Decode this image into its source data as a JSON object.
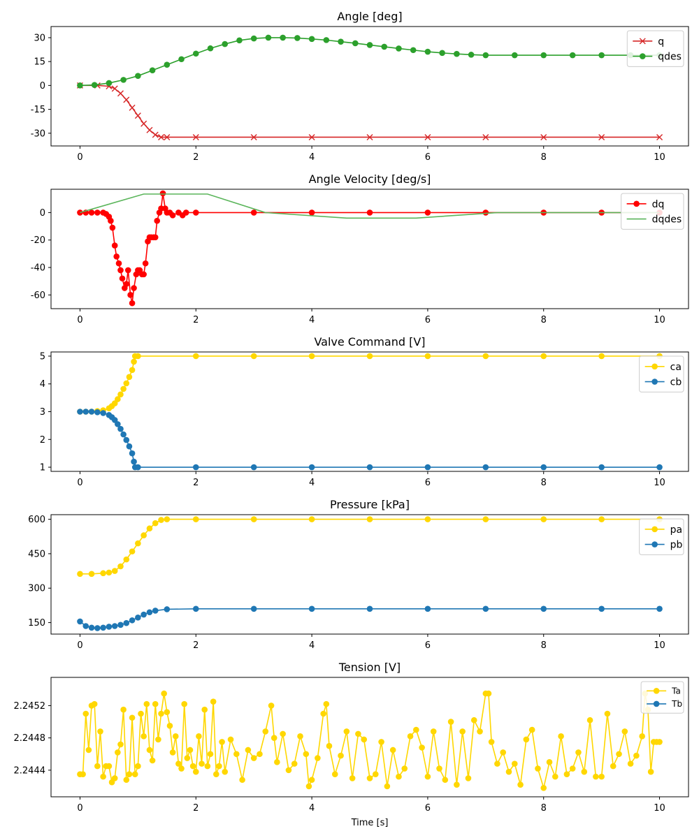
{
  "figure": {
    "xlabel": "Time [s]"
  },
  "chart_data": [
    {
      "type": "line",
      "title": "Angle [deg]",
      "xlabel": "",
      "ylabel": "",
      "xlim": [
        -0.5,
        10.5
      ],
      "ylim": [
        -38,
        37
      ],
      "xticks": [
        0,
        2,
        4,
        6,
        8,
        10
      ],
      "yticks": [
        -30,
        -15,
        0,
        15,
        30
      ],
      "legend": "top-right",
      "series": [
        {
          "name": "q",
          "color": "#d62728",
          "marker": "x",
          "x": [
            0,
            0.3,
            0.5,
            0.6,
            0.7,
            0.8,
            0.9,
            1.0,
            1.1,
            1.2,
            1.3,
            1.4,
            1.5,
            2,
            3,
            4,
            5,
            6,
            7,
            8,
            9,
            10
          ],
          "y": [
            0,
            0,
            -0.5,
            -2,
            -5,
            -9,
            -14,
            -19,
            -24,
            -28,
            -31,
            -32.5,
            -32.5,
            -32.5,
            -32.5,
            -32.5,
            -32.5,
            -32.5,
            -32.5,
            -32.5,
            -32.5,
            -32.5
          ]
        },
        {
          "name": "qdes",
          "color": "#2ca02c",
          "marker": "o",
          "x": [
            0,
            0.25,
            0.5,
            0.75,
            1.0,
            1.25,
            1.5,
            1.75,
            2.0,
            2.25,
            2.5,
            2.75,
            3.0,
            3.25,
            3.5,
            3.75,
            4.0,
            4.25,
            4.5,
            4.75,
            5.0,
            5.25,
            5.5,
            5.75,
            6.0,
            6.25,
            6.5,
            6.75,
            7.0,
            7.5,
            8.0,
            8.5,
            9.0,
            9.5,
            10.0
          ],
          "y": [
            0,
            0.3,
            1.5,
            3.5,
            6,
            9.5,
            13,
            16.5,
            20,
            23.3,
            26,
            28.3,
            29.5,
            30,
            30,
            29.8,
            29.2,
            28.5,
            27.5,
            26.5,
            25.4,
            24.3,
            23.2,
            22.2,
            21.2,
            20.4,
            19.8,
            19.3,
            19,
            19,
            19,
            19,
            19,
            19,
            19
          ]
        }
      ]
    },
    {
      "type": "line",
      "title": "Angle Velocity [deg/s]",
      "xlabel": "",
      "ylabel": "",
      "xlim": [
        -0.5,
        10.5
      ],
      "ylim": [
        -70,
        17
      ],
      "xticks": [
        0,
        2,
        4,
        6,
        8,
        10
      ],
      "yticks": [
        -60,
        -40,
        -20,
        0
      ],
      "legend": "top-right",
      "series": [
        {
          "name": "dq",
          "color": "#ff0000",
          "marker": "o",
          "x": [
            0,
            0.1,
            0.2,
            0.3,
            0.4,
            0.45,
            0.5,
            0.53,
            0.56,
            0.6,
            0.63,
            0.67,
            0.7,
            0.73,
            0.77,
            0.8,
            0.83,
            0.87,
            0.9,
            0.93,
            0.97,
            1.0,
            1.03,
            1.07,
            1.1,
            1.13,
            1.17,
            1.2,
            1.23,
            1.27,
            1.3,
            1.33,
            1.37,
            1.4,
            1.43,
            1.47,
            1.5,
            1.55,
            1.6,
            1.7,
            1.77,
            1.83,
            2.0,
            3,
            4,
            5,
            6,
            7,
            8,
            9,
            10
          ],
          "y": [
            0,
            0,
            0,
            0,
            0,
            -1,
            -3,
            -6,
            -11,
            -24,
            -32,
            -37,
            -42,
            -48,
            -55,
            -52,
            -42,
            -60,
            -66,
            -55,
            -45,
            -42,
            -42,
            -45,
            -45,
            -37,
            -21,
            -18,
            -18,
            -18,
            -18,
            -6,
            0,
            3,
            14,
            3,
            0,
            0,
            -2,
            0,
            -2,
            0,
            0,
            0,
            0,
            0,
            0,
            0,
            0,
            0,
            0
          ]
        },
        {
          "name": "dqdes",
          "color": "#5ab55a",
          "marker": "none",
          "x": [
            0,
            1.1,
            2.2,
            3.2,
            4.6,
            5.8,
            7.2,
            8.5,
            10
          ],
          "y": [
            0,
            13.5,
            13.5,
            0,
            -4,
            -4,
            0,
            0,
            0
          ]
        }
      ]
    },
    {
      "type": "line",
      "title": "Valve Command [V]",
      "xlabel": "",
      "ylabel": "",
      "xlim": [
        -0.5,
        10.5
      ],
      "ylim": [
        0.85,
        5.15
      ],
      "xticks": [
        0,
        2,
        4,
        6,
        8,
        10
      ],
      "yticks": [
        1,
        2,
        3,
        4,
        5
      ],
      "legend": "top-right",
      "series": [
        {
          "name": "ca",
          "color": "#ffd700",
          "marker": "o",
          "x": [
            0,
            0.1,
            0.2,
            0.3,
            0.4,
            0.5,
            0.55,
            0.6,
            0.65,
            0.7,
            0.75,
            0.8,
            0.85,
            0.9,
            0.93,
            0.95,
            1.0,
            2,
            3,
            4,
            5,
            6,
            7,
            8,
            9,
            10
          ],
          "y": [
            3,
            3,
            3,
            3.02,
            3.05,
            3.12,
            3.2,
            3.3,
            3.45,
            3.62,
            3.82,
            4.02,
            4.25,
            4.5,
            4.8,
            5,
            5,
            5,
            5,
            5,
            5,
            5,
            5,
            5,
            5,
            5
          ]
        },
        {
          "name": "cb",
          "color": "#1f77b4",
          "marker": "o",
          "x": [
            0,
            0.1,
            0.2,
            0.3,
            0.4,
            0.5,
            0.55,
            0.6,
            0.65,
            0.7,
            0.75,
            0.8,
            0.85,
            0.9,
            0.93,
            0.95,
            1.0,
            2,
            3,
            4,
            5,
            6,
            7,
            8,
            9,
            10
          ],
          "y": [
            3,
            3,
            3,
            2.98,
            2.95,
            2.88,
            2.8,
            2.7,
            2.55,
            2.38,
            2.18,
            1.98,
            1.75,
            1.5,
            1.2,
            1,
            1,
            1,
            1,
            1,
            1,
            1,
            1,
            1,
            1,
            1
          ]
        }
      ]
    },
    {
      "type": "line",
      "title": "Pressure [kPa]",
      "xlabel": "",
      "ylabel": "",
      "xlim": [
        -0.5,
        10.5
      ],
      "ylim": [
        100,
        620
      ],
      "xticks": [
        0,
        2,
        4,
        6,
        8,
        10
      ],
      "yticks": [
        150,
        300,
        450,
        600
      ],
      "legend": "top-right",
      "series": [
        {
          "name": "pa",
          "color": "#ffd700",
          "marker": "o",
          "x": [
            0,
            0.2,
            0.4,
            0.5,
            0.6,
            0.7,
            0.8,
            0.9,
            1.0,
            1.1,
            1.2,
            1.3,
            1.4,
            1.5,
            2,
            3,
            4,
            5,
            6,
            7,
            8,
            9,
            10
          ],
          "y": [
            362,
            362,
            365,
            368,
            375,
            395,
            425,
            460,
            495,
            530,
            560,
            583,
            597,
            600,
            600,
            600,
            600,
            600,
            600,
            600,
            600,
            600,
            600
          ]
        },
        {
          "name": "pb",
          "color": "#1f77b4",
          "marker": "o",
          "x": [
            0,
            0.1,
            0.2,
            0.3,
            0.4,
            0.5,
            0.6,
            0.7,
            0.8,
            0.9,
            1.0,
            1.1,
            1.2,
            1.3,
            1.5,
            2,
            3,
            4,
            5,
            6,
            7,
            8,
            9,
            10
          ],
          "y": [
            155,
            135,
            128,
            126,
            128,
            132,
            135,
            140,
            148,
            160,
            172,
            185,
            195,
            202,
            208,
            210,
            210,
            210,
            210,
            210,
            210,
            210,
            210,
            210
          ]
        }
      ]
    },
    {
      "type": "line",
      "title": "Tension [V]",
      "xlabel": "Time [s]",
      "ylabel": "",
      "xlim": [
        -0.5,
        10.5
      ],
      "ylim": [
        2.24407,
        2.24555
      ],
      "xticks": [
        0,
        2,
        4,
        6,
        8,
        10
      ],
      "yticks": [
        2.2444,
        2.2448,
        2.2452
      ],
      "ytick_labels": [
        "2.2444",
        "2.2448",
        "2.2452"
      ],
      "legend": "top-right",
      "series": [
        {
          "name": "Ta",
          "color": "#ffd700",
          "marker": "o",
          "x": [
            0,
            0.05,
            0.1,
            0.15,
            0.2,
            0.25,
            0.3,
            0.35,
            0.4,
            0.45,
            0.5,
            0.55,
            0.6,
            0.65,
            0.7,
            0.75,
            0.8,
            0.85,
            0.9,
            0.95,
            1.0,
            1.05,
            1.1,
            1.15,
            1.2,
            1.25,
            1.3,
            1.35,
            1.4,
            1.45,
            1.5,
            1.55,
            1.6,
            1.65,
            1.7,
            1.75,
            1.8,
            1.85,
            1.9,
            1.95,
            2.0,
            2.05,
            2.1,
            2.15,
            2.2,
            2.25,
            2.3,
            2.35,
            2.4,
            2.45,
            2.5,
            2.6,
            2.7,
            2.8,
            2.9,
            3.0,
            3.1,
            3.2,
            3.3,
            3.35,
            3.4,
            3.5,
            3.6,
            3.7,
            3.8,
            3.9,
            3.95,
            4.0,
            4.1,
            4.2,
            4.25,
            4.3,
            4.4,
            4.5,
            4.6,
            4.7,
            4.8,
            4.9,
            5.0,
            5.1,
            5.2,
            5.3,
            5.4,
            5.5,
            5.6,
            5.7,
            5.8,
            5.9,
            6.0,
            6.1,
            6.2,
            6.3,
            6.4,
            6.5,
            6.6,
            6.7,
            6.8,
            6.9,
            7.0,
            7.05,
            7.1,
            7.2,
            7.3,
            7.4,
            7.5,
            7.6,
            7.7,
            7.8,
            7.9,
            8.0,
            8.1,
            8.2,
            8.3,
            8.4,
            8.5,
            8.6,
            8.7,
            8.8,
            8.9,
            9.0,
            9.1,
            9.2,
            9.3,
            9.4,
            9.5,
            9.6,
            9.7,
            9.75,
            9.8,
            9.85,
            9.9,
            9.95,
            10.0
          ],
          "y": [
            2.24435,
            2.24435,
            2.2451,
            2.24465,
            2.2452,
            2.24522,
            2.24445,
            2.24488,
            2.24432,
            2.24445,
            2.24445,
            2.24425,
            2.2443,
            2.24462,
            2.24472,
            2.24515,
            2.24428,
            2.24435,
            2.24505,
            2.24435,
            2.24445,
            2.2451,
            2.24482,
            2.24522,
            2.24465,
            2.24452,
            2.24522,
            2.24478,
            2.2451,
            2.24535,
            2.24512,
            2.24495,
            2.24462,
            2.24482,
            2.24448,
            2.24442,
            2.24522,
            2.24455,
            2.24465,
            2.24445,
            2.24438,
            2.24482,
            2.24448,
            2.24515,
            2.24445,
            2.2446,
            2.24525,
            2.24435,
            2.24445,
            2.24475,
            2.24438,
            2.24478,
            2.2446,
            2.24428,
            2.24465,
            2.24455,
            2.2446,
            2.24488,
            2.2452,
            2.2448,
            2.2445,
            2.24485,
            2.2444,
            2.24448,
            2.24482,
            2.2446,
            2.2442,
            2.24428,
            2.24455,
            2.2451,
            2.24522,
            2.2447,
            2.24435,
            2.24458,
            2.24488,
            2.2443,
            2.24485,
            2.24478,
            2.2443,
            2.24435,
            2.24475,
            2.2442,
            2.24465,
            2.24432,
            2.24442,
            2.24482,
            2.2449,
            2.24468,
            2.24432,
            2.24488,
            2.24442,
            2.24428,
            2.245,
            2.24422,
            2.24488,
            2.2443,
            2.24502,
            2.24488,
            2.24535,
            2.24535,
            2.24475,
            2.24448,
            2.24462,
            2.24438,
            2.24448,
            2.24422,
            2.24478,
            2.2449,
            2.24442,
            2.24418,
            2.2445,
            2.24432,
            2.24482,
            2.24435,
            2.24442,
            2.24462,
            2.24438,
            2.24502,
            2.24432,
            2.24432,
            2.2451,
            2.24445,
            2.2446,
            2.24488,
            2.24448,
            2.24458,
            2.24482,
            2.24535,
            2.24515,
            2.24438,
            2.24475,
            2.24475,
            2.24475
          ]
        },
        {
          "name": "Tb",
          "color": "#1f77b4",
          "marker": "o",
          "x": [],
          "y": []
        }
      ]
    }
  ]
}
